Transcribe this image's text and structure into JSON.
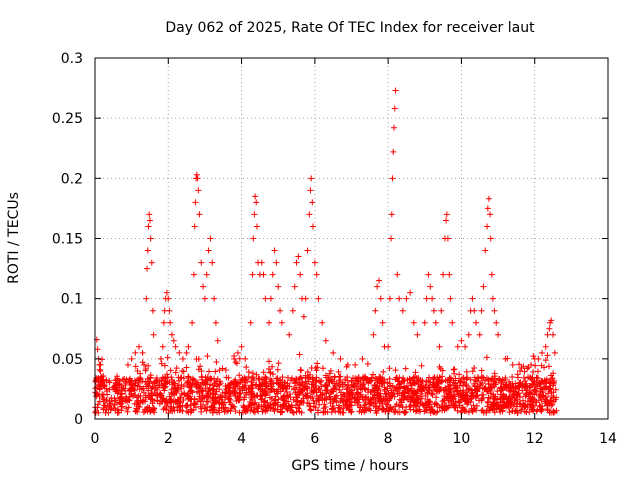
{
  "chart_data": {
    "type": "scatter",
    "title": "Day 062 of 2025, Rate Of TEC Index for receiver laut",
    "xlabel": "GPS time / hours",
    "ylabel": "ROTI / TECUs",
    "xlim": [
      0,
      14
    ],
    "ylim": [
      0,
      0.3
    ],
    "xticks": [
      0,
      2,
      4,
      6,
      8,
      10,
      12,
      14
    ],
    "xtick_labels": [
      "0",
      "2",
      "4",
      "6",
      "8",
      "10",
      "12",
      "14"
    ],
    "yticks": [
      0,
      0.05,
      0.1,
      0.15,
      0.2,
      0.25,
      0.3
    ],
    "ytick_labels": [
      "0",
      "0.05",
      "0.1",
      "0.15",
      "0.2",
      "0.25",
      "0.3"
    ],
    "grid": true,
    "marker": "+",
    "marker_color": "#ff0000",
    "background_x_range": [
      0,
      12.6
    ],
    "background_y_range": [
      0.005,
      0.035
    ],
    "background_count": 2200,
    "series": [
      {
        "name": "ROTI",
        "points": [
          [
            0.05,
            0.066
          ],
          [
            0.07,
            0.058
          ],
          [
            0.1,
            0.05
          ],
          [
            0.12,
            0.045
          ],
          [
            0.15,
            0.04
          ],
          [
            0.9,
            0.045
          ],
          [
            1.0,
            0.05
          ],
          [
            1.1,
            0.055
          ],
          [
            1.2,
            0.06
          ],
          [
            1.3,
            0.055
          ],
          [
            1.4,
            0.1
          ],
          [
            1.42,
            0.125
          ],
          [
            1.44,
            0.14
          ],
          [
            1.46,
            0.16
          ],
          [
            1.48,
            0.17
          ],
          [
            1.5,
            0.165
          ],
          [
            1.52,
            0.15
          ],
          [
            1.55,
            0.13
          ],
          [
            1.58,
            0.09
          ],
          [
            1.6,
            0.07
          ],
          [
            1.8,
            0.05
          ],
          [
            1.85,
            0.06
          ],
          [
            1.88,
            0.08
          ],
          [
            1.9,
            0.09
          ],
          [
            1.93,
            0.1
          ],
          [
            1.96,
            0.105
          ],
          [
            2.0,
            0.1
          ],
          [
            2.03,
            0.09
          ],
          [
            2.05,
            0.08
          ],
          [
            2.1,
            0.07
          ],
          [
            2.15,
            0.065
          ],
          [
            2.2,
            0.06
          ],
          [
            2.3,
            0.055
          ],
          [
            2.4,
            0.05
          ],
          [
            2.5,
            0.055
          ],
          [
            2.55,
            0.06
          ],
          [
            2.65,
            0.08
          ],
          [
            2.7,
            0.12
          ],
          [
            2.72,
            0.16
          ],
          [
            2.74,
            0.18
          ],
          [
            2.76,
            0.2
          ],
          [
            2.78,
            0.203
          ],
          [
            2.8,
            0.2
          ],
          [
            2.82,
            0.19
          ],
          [
            2.85,
            0.17
          ],
          [
            2.9,
            0.13
          ],
          [
            2.95,
            0.11
          ],
          [
            3.0,
            0.1
          ],
          [
            3.05,
            0.12
          ],
          [
            3.1,
            0.14
          ],
          [
            3.15,
            0.15
          ],
          [
            3.2,
            0.13
          ],
          [
            3.25,
            0.1
          ],
          [
            3.3,
            0.08
          ],
          [
            3.35,
            0.065
          ],
          [
            3.8,
            0.05
          ],
          [
            3.9,
            0.055
          ],
          [
            4.0,
            0.06
          ],
          [
            4.1,
            0.05
          ],
          [
            4.25,
            0.08
          ],
          [
            4.3,
            0.12
          ],
          [
            4.32,
            0.15
          ],
          [
            4.35,
            0.17
          ],
          [
            4.37,
            0.185
          ],
          [
            4.4,
            0.18
          ],
          [
            4.42,
            0.16
          ],
          [
            4.45,
            0.13
          ],
          [
            4.5,
            0.12
          ],
          [
            4.55,
            0.13
          ],
          [
            4.6,
            0.12
          ],
          [
            4.65,
            0.1
          ],
          [
            4.75,
            0.08
          ],
          [
            4.8,
            0.1
          ],
          [
            4.85,
            0.12
          ],
          [
            4.9,
            0.14
          ],
          [
            4.95,
            0.13
          ],
          [
            5.0,
            0.11
          ],
          [
            5.05,
            0.09
          ],
          [
            5.1,
            0.08
          ],
          [
            5.3,
            0.07
          ],
          [
            5.4,
            0.09
          ],
          [
            5.45,
            0.11
          ],
          [
            5.5,
            0.13
          ],
          [
            5.55,
            0.135
          ],
          [
            5.6,
            0.12
          ],
          [
            5.65,
            0.1
          ],
          [
            5.7,
            0.085
          ],
          [
            5.75,
            0.1
          ],
          [
            5.8,
            0.14
          ],
          [
            5.85,
            0.17
          ],
          [
            5.88,
            0.19
          ],
          [
            5.9,
            0.2
          ],
          [
            5.93,
            0.18
          ],
          [
            5.95,
            0.16
          ],
          [
            6.0,
            0.13
          ],
          [
            6.05,
            0.12
          ],
          [
            6.1,
            0.1
          ],
          [
            6.2,
            0.08
          ],
          [
            6.3,
            0.065
          ],
          [
            6.5,
            0.055
          ],
          [
            6.7,
            0.05
          ],
          [
            6.9,
            0.045
          ],
          [
            7.1,
            0.045
          ],
          [
            7.3,
            0.05
          ],
          [
            7.6,
            0.07
          ],
          [
            7.65,
            0.09
          ],
          [
            7.7,
            0.11
          ],
          [
            7.75,
            0.115
          ],
          [
            7.8,
            0.1
          ],
          [
            7.85,
            0.08
          ],
          [
            7.9,
            0.06
          ],
          [
            8.0,
            0.06
          ],
          [
            8.05,
            0.1
          ],
          [
            8.08,
            0.15
          ],
          [
            8.1,
            0.17
          ],
          [
            8.12,
            0.2
          ],
          [
            8.14,
            0.222
          ],
          [
            8.16,
            0.242
          ],
          [
            8.18,
            0.258
          ],
          [
            8.2,
            0.273
          ],
          [
            8.25,
            0.12
          ],
          [
            8.3,
            0.1
          ],
          [
            8.4,
            0.09
          ],
          [
            8.5,
            0.1
          ],
          [
            8.6,
            0.105
          ],
          [
            8.7,
            0.08
          ],
          [
            8.8,
            0.07
          ],
          [
            9.0,
            0.08
          ],
          [
            9.05,
            0.1
          ],
          [
            9.1,
            0.12
          ],
          [
            9.15,
            0.11
          ],
          [
            9.2,
            0.1
          ],
          [
            9.25,
            0.09
          ],
          [
            9.3,
            0.08
          ],
          [
            9.4,
            0.06
          ],
          [
            9.45,
            0.09
          ],
          [
            9.5,
            0.12
          ],
          [
            9.55,
            0.15
          ],
          [
            9.58,
            0.165
          ],
          [
            9.6,
            0.17
          ],
          [
            9.63,
            0.15
          ],
          [
            9.67,
            0.12
          ],
          [
            9.7,
            0.1
          ],
          [
            9.75,
            0.08
          ],
          [
            9.9,
            0.06
          ],
          [
            10.0,
            0.065
          ],
          [
            10.1,
            0.06
          ],
          [
            10.2,
            0.07
          ],
          [
            10.25,
            0.09
          ],
          [
            10.3,
            0.1
          ],
          [
            10.35,
            0.09
          ],
          [
            10.4,
            0.08
          ],
          [
            10.5,
            0.07
          ],
          [
            10.55,
            0.09
          ],
          [
            10.6,
            0.11
          ],
          [
            10.65,
            0.14
          ],
          [
            10.7,
            0.16
          ],
          [
            10.72,
            0.175
          ],
          [
            10.75,
            0.183
          ],
          [
            10.78,
            0.17
          ],
          [
            10.8,
            0.15
          ],
          [
            10.83,
            0.12
          ],
          [
            10.86,
            0.1
          ],
          [
            10.9,
            0.09
          ],
          [
            10.95,
            0.08
          ],
          [
            11.0,
            0.07
          ],
          [
            11.2,
            0.05
          ],
          [
            11.4,
            0.045
          ],
          [
            11.6,
            0.04
          ],
          [
            11.9,
            0.045
          ],
          [
            12.0,
            0.05
          ],
          [
            12.1,
            0.05
          ],
          [
            12.2,
            0.055
          ],
          [
            12.3,
            0.06
          ],
          [
            12.35,
            0.07
          ],
          [
            12.4,
            0.075
          ],
          [
            12.42,
            0.08
          ],
          [
            12.45,
            0.082
          ],
          [
            12.5,
            0.07
          ],
          [
            12.55,
            0.055
          ]
        ]
      }
    ]
  }
}
